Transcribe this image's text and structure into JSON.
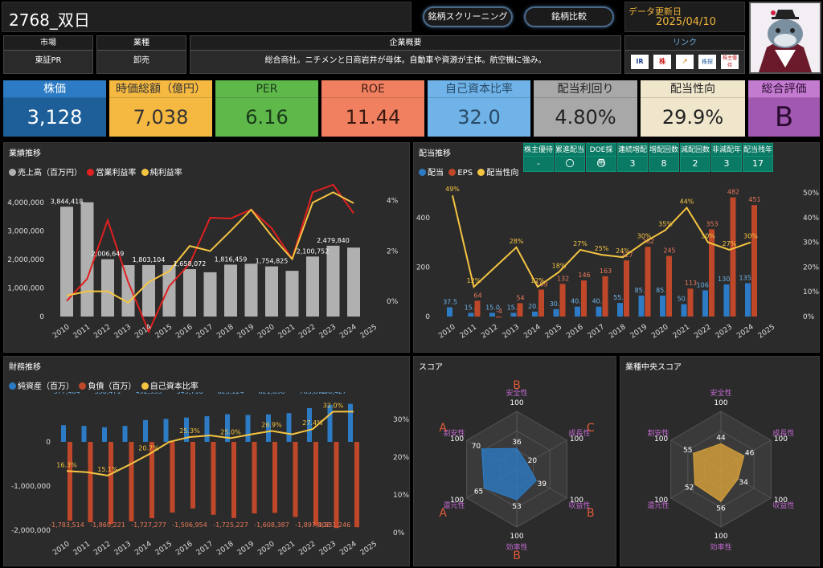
{
  "header": {
    "title": "2768_双日",
    "nav_buttons": [
      "銘柄スクリーニング",
      "銘柄比較"
    ],
    "update_label": "データ更新日",
    "update_date": "2025/04/10"
  },
  "info": {
    "market_label": "市場",
    "market_value": "東証PR",
    "industry_label": "業種",
    "industry_value": "卸売",
    "overview_label": "企業概要",
    "overview_value": "総合商社。ニチメンと日商岩井が母体。自動車や資源が主体。航空機に強み。",
    "links_label": "リンク",
    "link_icons": [
      "IR",
      "株",
      "↗",
      "株探",
      "株主優待"
    ]
  },
  "kpis": [
    {
      "label": "株価",
      "value": "3,128",
      "bg": "#1f5f99",
      "lbl_bg": "#2c7bc4",
      "color": "#ffffff"
    },
    {
      "label": "時価総額（億円）",
      "value": "7,038",
      "bg": "#f5b942",
      "lbl_bg": "#f5b942",
      "color": "#333333"
    },
    {
      "label": "PER",
      "value": "6.16",
      "bg": "#5fb84a",
      "lbl_bg": "#5fb84a",
      "color": "#1a3a1a"
    },
    {
      "label": "ROE",
      "value": "11.44",
      "bg": "#f08060",
      "lbl_bg": "#f08060",
      "color": "#3a1a10"
    },
    {
      "label": "自己資本比率",
      "value": "32.0",
      "bg": "#6fb3e8",
      "lbl_bg": "#6fb3e8",
      "color": "#2a4a66"
    },
    {
      "label": "配当利回り",
      "value": "4.80%",
      "bg": "#a8a8a8",
      "lbl_bg": "#a8a8a8",
      "color": "#222222"
    },
    {
      "label": "配当性向",
      "value": "29.9%",
      "bg": "#efe6cc",
      "lbl_bg": "#efe6cc",
      "color": "#222222"
    },
    {
      "label": "総合評価",
      "value": "B",
      "bg": "#a058b0",
      "lbl_bg": "#c37bd0",
      "color": "#2a0a30"
    }
  ],
  "panels": {
    "performance_title": "業績推移",
    "dividend_title": "配当推移",
    "finance_title": "財務推移",
    "score_title": "スコア",
    "industry_score_title": "業種中央スコア"
  },
  "dividend_stats": [
    {
      "label": "株主優待",
      "value": "-"
    },
    {
      "label": "累進配当",
      "value": "〇"
    },
    {
      "label": "DOE採用",
      "value": "〇"
    },
    {
      "label": "連続増配",
      "value": "3"
    },
    {
      "label": "増配回数",
      "value": "8"
    },
    {
      "label": "減配回数",
      "value": "2"
    },
    {
      "label": "非減配年",
      "value": "3"
    },
    {
      "label": "配当残年",
      "value": "17"
    }
  ],
  "chart_data": [
    {
      "type": "bar",
      "title": "業績推移",
      "categories": [
        "2010",
        "2011",
        "2012",
        "2013",
        "2014",
        "2015",
        "2016",
        "2017",
        "2018",
        "2019",
        "2020",
        "2021",
        "2022",
        "2023",
        "2024",
        "2025"
      ],
      "series": [
        {
          "name": "売上高（百万円）",
          "type": "bar",
          "color": "#b0b0b0",
          "values": [
            3844418,
            4000000,
            2006649,
            1800000,
            1803104,
            1800000,
            1658072,
            1550000,
            1816459,
            1850000,
            1754825,
            1600000,
            2100752,
            2479840,
            2414000,
            null
          ]
        },
        {
          "name": "営業利益率",
          "type": "line",
          "color": "#e02020",
          "values": [
            0.02,
            0.9,
            3.22,
            0.77,
            -1.2,
            0.6,
            1.5,
            3.32,
            3.29,
            3.64,
            2.9,
            1.69,
            4.33,
            4.63,
            3.5,
            null
          ]
        },
        {
          "name": "純利益率",
          "type": "line",
          "color": "#f5c542",
          "values": [
            0.23,
            0.4,
            0.4,
            -0.05,
            0.77,
            1.2,
            2.2,
            2.0,
            2.8,
            3.64,
            2.6,
            1.68,
            3.92,
            4.33,
            3.9,
            null
          ]
        }
      ],
      "y_labels": [
        "0",
        "1,000,000",
        "2,000,000",
        "3,000,000",
        "4,000,000"
      ],
      "y2_labels": [
        "0%",
        "2%",
        "4%"
      ],
      "data_labels": [
        "3,844,418",
        "2,006,649",
        "1,803,104",
        "1,658,072",
        "1,816,459",
        "1,754,825",
        "2,100,752",
        "2,479,840"
      ],
      "pct_labels": [
        "0.23%",
        "0.40%",
        "-0.05%",
        "0.77%",
        "2.20%",
        "3.32%",
        "3.29%",
        "3.64%",
        "1.69%",
        "1.68%",
        "3.92%",
        "4.33%",
        "4.63%",
        "3.50%",
        "3.22%"
      ]
    },
    {
      "type": "bar",
      "title": "配当推移",
      "categories": [
        "2010",
        "2011",
        "2012",
        "2013",
        "2014",
        "2015",
        "2016",
        "2017",
        "2018",
        "2019",
        "2020",
        "2021",
        "2022",
        "2023",
        "2024",
        "2025"
      ],
      "series": [
        {
          "name": "配当",
          "type": "bar",
          "color": "#2c7bc4",
          "values": [
            37.5,
            15.0,
            15.0,
            15.0,
            20.0,
            30.0,
            40.0,
            40.0,
            55.0,
            85.0,
            85.0,
            50.0,
            106.0,
            130.0,
            135.0,
            null
          ]
        },
        {
          "name": "EPS",
          "type": "bar",
          "color": "#c0482a",
          "values": [
            null,
            64,
            -4,
            54,
            109,
            132,
            146,
            163,
            227,
            282,
            245,
            113,
            353,
            482,
            451,
            null
          ]
        },
        {
          "name": "配当性向",
          "type": "line",
          "color": "#f5c542",
          "values": [
            49,
            12,
            null,
            28,
            12,
            18,
            27,
            25,
            24,
            30,
            35,
            44,
            30,
            27,
            30,
            null
          ]
        }
      ],
      "y_labels": [
        "0",
        "200",
        "400"
      ],
      "y2_labels": [
        "0%",
        "10%",
        "20%",
        "30%",
        "40%",
        "50%"
      ]
    },
    {
      "type": "bar",
      "title": "財務推移",
      "categories": [
        "2010",
        "2011",
        "2012",
        "2013",
        "2014",
        "2015",
        "2016",
        "2017",
        "2018",
        "2019",
        "2020",
        "2021",
        "2022",
        "2023",
        "2024",
        "2025"
      ],
      "series": [
        {
          "name": "純資産（百万）",
          "type": "bar",
          "color": "#2c7bc4",
          "values": [
            377404,
            360000,
            330471,
            360000,
            492959,
            520000,
            549716,
            580000,
            625124,
            610000,
            621898,
            650000,
            763878,
            838427,
            860000,
            null
          ]
        },
        {
          "name": "負債（百万）",
          "type": "bar",
          "color": "#c0482a",
          "values": [
            -1783514,
            -1820000,
            -1860221,
            -1800000,
            -1727277,
            -1600000,
            -1506954,
            -1650000,
            -1725227,
            -1620000,
            -1608387,
            -1700000,
            -1897802,
            -1950000,
            -1931246,
            null
          ]
        },
        {
          "name": "自己資本比率",
          "type": "line",
          "color": "#f5c542",
          "values": [
            16.3,
            16.0,
            15.1,
            17.8,
            20.7,
            24.0,
            25.3,
            25.7,
            25.0,
            26.0,
            26.9,
            26.0,
            27.4,
            32.0,
            32.0,
            null
          ]
        }
      ],
      "y_labels": [
        "-2,000,000",
        "-1,000,000",
        "0"
      ],
      "y2_labels": [
        "0%",
        "10%",
        "20%",
        "30%"
      ],
      "data_labels_pos": [
        "377,404",
        "330,471",
        "492,959",
        "549,716",
        "625,124",
        "621,898",
        "763,878",
        "838,427"
      ],
      "data_labels_neg": [
        "-1,783,514",
        "-1,860,221",
        "-1,727,277",
        "-1,506,954",
        "-1,725,227",
        "-1,608,387",
        "-1,897,802",
        "-1,931,246"
      ]
    },
    {
      "type": "radar",
      "title": "スコア",
      "axes": [
        "安全性",
        "成長性",
        "収益性",
        "効率性",
        "還元性",
        "割安性"
      ],
      "grades": [
        "B",
        "C",
        "B",
        "B",
        "A",
        "A"
      ],
      "max": 100,
      "values": [
        36,
        20,
        39,
        53,
        65,
        70
      ],
      "color": "#2c7bc4"
    },
    {
      "type": "radar",
      "title": "業種中央スコア",
      "axes": [
        "安全性",
        "成長性",
        "収益性",
        "効率性",
        "還元性",
        "割安性"
      ],
      "max": 100,
      "values": [
        44,
        46,
        34,
        56,
        52,
        55
      ],
      "color": "#d9a23a"
    }
  ]
}
